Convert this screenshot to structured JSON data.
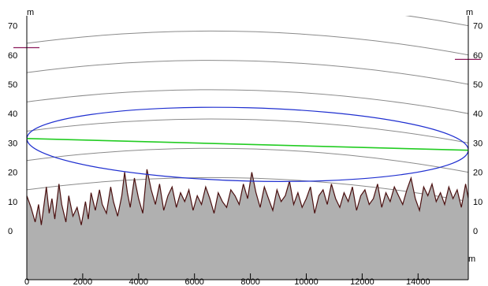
{
  "chart_data": {
    "type": "area",
    "title": "",
    "x_unit": "m",
    "y_unit": "m",
    "xlim": [
      0,
      15800
    ],
    "ylim": [
      -10,
      70
    ],
    "x_ticks": [
      0,
      2000,
      4000,
      6000,
      8000,
      10000,
      12000,
      14000
    ],
    "y_ticks": [
      0,
      10,
      20,
      30,
      40,
      50,
      60,
      70
    ],
    "grid": false,
    "legend": "none",
    "terrain_profile": {
      "x": [
        0,
        150,
        300,
        420,
        520,
        700,
        800,
        900,
        1000,
        1150,
        1250,
        1400,
        1500,
        1650,
        1800,
        1950,
        2100,
        2200,
        2300,
        2450,
        2600,
        2700,
        2850,
        3000,
        3100,
        3250,
        3400,
        3500,
        3600,
        3700,
        3850,
        4000,
        4150,
        4300,
        4450,
        4600,
        4750,
        4900,
        5050,
        5200,
        5350,
        5500,
        5650,
        5800,
        5950,
        6100,
        6250,
        6400,
        6550,
        6700,
        6850,
        7000,
        7150,
        7300,
        7450,
        7600,
        7750,
        7900,
        8050,
        8200,
        8350,
        8500,
        8650,
        8800,
        8950,
        9100,
        9250,
        9400,
        9550,
        9700,
        9850,
        10000,
        10150,
        10300,
        10450,
        10600,
        10750,
        10900,
        11050,
        11200,
        11350,
        11500,
        11650,
        11800,
        11950,
        12100,
        12250,
        12400,
        12550,
        12700,
        12850,
        13000,
        13150,
        13300,
        13450,
        13600,
        13750,
        13900,
        14050,
        14200,
        14350,
        14500,
        14650,
        14800,
        14950,
        15100,
        15250,
        15400,
        15550,
        15700,
        15800
      ],
      "y": [
        12,
        8,
        3,
        9,
        2,
        15,
        6,
        11,
        4,
        16,
        9,
        3,
        12,
        5,
        8,
        2,
        10,
        4,
        13,
        7,
        14,
        9,
        6,
        15,
        10,
        5,
        12,
        20,
        13,
        8,
        18,
        11,
        6,
        21,
        14,
        9,
        16,
        7,
        12,
        15,
        8,
        13,
        10,
        14,
        7,
        12,
        9,
        15,
        11,
        6,
        13,
        10,
        8,
        14,
        12,
        9,
        16,
        11,
        20,
        13,
        8,
        15,
        11,
        7,
        14,
        10,
        12,
        17,
        9,
        13,
        8,
        11,
        15,
        6,
        12,
        14,
        9,
        16,
        11,
        8,
        13,
        10,
        15,
        7,
        12,
        14,
        9,
        11,
        16,
        8,
        13,
        10,
        15,
        12,
        9,
        14,
        18,
        11,
        7,
        15,
        12,
        16,
        10,
        13,
        9,
        15,
        11,
        14,
        8,
        16,
        11
      ]
    },
    "line_of_sight": {
      "x": [
        0,
        15800
      ],
      "y": [
        31.5,
        27.5
      ]
    },
    "fresnel_zone": {
      "x_start": 0,
      "x_end": 15800,
      "center_y": [
        31.5,
        27.5
      ],
      "half_height": 12.5
    },
    "earth_curvature_lines": {
      "x_start": 0,
      "x_end": 15800,
      "offsets": [
        -17.5,
        -7.5,
        2.5,
        12.5,
        22.5,
        32.5,
        42.5
      ],
      "bulge": 6
    },
    "end_markers": {
      "left_y": 62.5,
      "right_y": 58.5
    },
    "colors": {
      "terrain_fill": "#b0b0b0",
      "terrain_edge": "#4a0f0f",
      "line_of_sight": "#22cc22",
      "fresnel_zone": "#1f2fd0",
      "curvature_lines": "#8a8a8a",
      "end_markers": "#8b1a5a",
      "axes": "#000000"
    }
  }
}
